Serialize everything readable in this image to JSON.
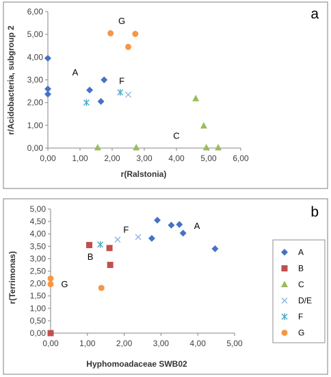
{
  "series_styles": {
    "A": {
      "color": "#4472C4",
      "marker": "diamond"
    },
    "B": {
      "color": "#C0504D",
      "marker": "square"
    },
    "C": {
      "color": "#9BBB59",
      "marker": "triangle"
    },
    "D/E": {
      "color": "#8EB4E3",
      "marker": "x"
    },
    "F": {
      "color": "#4BACC6",
      "marker": "star"
    },
    "G": {
      "color": "#F79646",
      "marker": "circle"
    }
  },
  "chart_data": [
    {
      "type": "scatter",
      "panel_label": "a",
      "xlabel": "r(Ralstonia)",
      "ylabel": "r/Acidobacteria, subgroup 2",
      "xlim": [
        0,
        6
      ],
      "ylim": [
        0,
        6
      ],
      "xticks": [
        0,
        1,
        2,
        3,
        4,
        5,
        6
      ],
      "yticks": [
        0,
        1,
        2,
        3,
        4,
        5,
        6
      ],
      "xtick_labels": [
        "0,00",
        "1,00",
        "2,00",
        "3,00",
        "4,00",
        "5,00",
        "6,00"
      ],
      "ytick_labels": [
        "0,00",
        "1,00",
        "2,00",
        "3,00",
        "4,00",
        "5,00",
        "6,00"
      ],
      "grid": false,
      "series": [
        {
          "name": "A",
          "points": [
            [
              0.0,
              3.95
            ],
            [
              0.0,
              2.6
            ],
            [
              0.0,
              2.37
            ],
            [
              1.3,
              2.55
            ],
            [
              1.75,
              3.0
            ],
            [
              1.65,
              2.05
            ]
          ]
        },
        {
          "name": "C",
          "points": [
            [
              1.55,
              0.02
            ],
            [
              2.75,
              0.02
            ],
            [
              4.6,
              2.18
            ],
            [
              4.85,
              0.98
            ],
            [
              4.93,
              0.02
            ],
            [
              5.3,
              0.02
            ]
          ]
        },
        {
          "name": "D/E",
          "points": [
            [
              2.5,
              2.35
            ]
          ]
        },
        {
          "name": "F",
          "points": [
            [
              1.2,
              2.0
            ],
            [
              2.25,
              2.45
            ]
          ]
        },
        {
          "name": "G",
          "points": [
            [
              1.95,
              5.05
            ],
            [
              2.72,
              5.02
            ],
            [
              2.5,
              4.45
            ]
          ]
        }
      ],
      "annotations": [
        {
          "text": "A",
          "x": 0.85,
          "y": 3.2
        },
        {
          "text": "G",
          "x": 2.3,
          "y": 5.45
        },
        {
          "text": "F",
          "x": 2.3,
          "y": 2.82
        },
        {
          "text": "C",
          "x": 4.0,
          "y": 0.4
        }
      ]
    },
    {
      "type": "scatter",
      "panel_label": "b",
      "xlabel": "Hyphomoadaceae  SWB02",
      "ylabel": "r(Terrimonas)",
      "xlim": [
        0,
        5
      ],
      "ylim": [
        0,
        5
      ],
      "xticks": [
        0,
        1,
        2,
        3,
        4,
        5
      ],
      "yticks": [
        0,
        0.5,
        1,
        1.5,
        2,
        2.5,
        3,
        3.5,
        4,
        4.5,
        5
      ],
      "xtick_labels": [
        "0,00",
        "1,00",
        "2,00",
        "3,00",
        "4,00",
        "5,00"
      ],
      "ytick_labels": [
        "0,00",
        "0,50",
        "1,00",
        "1,50",
        "2,00",
        "2,50",
        "3,00",
        "3,50",
        "4,00",
        "4,50",
        "5,00"
      ],
      "grid": false,
      "legend": {
        "placement": "right",
        "entries": [
          "A",
          "B",
          "C",
          "D/E",
          "F",
          "G"
        ]
      },
      "series": [
        {
          "name": "A",
          "points": [
            [
              2.75,
              3.82
            ],
            [
              2.9,
              4.55
            ],
            [
              3.28,
              4.35
            ],
            [
              3.5,
              4.38
            ],
            [
              3.6,
              4.03
            ],
            [
              4.47,
              3.4
            ]
          ]
        },
        {
          "name": "B",
          "points": [
            [
              0.0,
              0.0
            ],
            [
              1.05,
              3.55
            ],
            [
              1.6,
              3.43
            ],
            [
              1.62,
              2.75
            ]
          ]
        },
        {
          "name": "D/E",
          "points": [
            [
              1.82,
              3.77
            ],
            [
              2.38,
              3.87
            ]
          ]
        },
        {
          "name": "F",
          "points": [
            [
              1.35,
              3.57
            ]
          ]
        },
        {
          "name": "G",
          "points": [
            [
              0.0,
              2.2
            ],
            [
              0.0,
              1.97
            ],
            [
              1.38,
              1.82
            ]
          ]
        }
      ],
      "annotations": [
        {
          "text": "A",
          "x": 3.98,
          "y": 4.2
        },
        {
          "text": "B",
          "x": 1.08,
          "y": 2.95
        },
        {
          "text": "F",
          "x": 2.05,
          "y": 4.05
        },
        {
          "text": "G",
          "x": 0.38,
          "y": 1.85
        }
      ]
    }
  ]
}
